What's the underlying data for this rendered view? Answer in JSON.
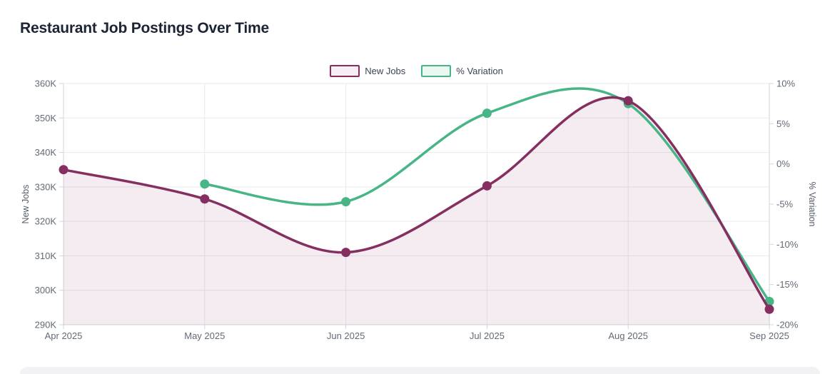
{
  "page": {
    "title": "Restaurant Job Postings Over Time"
  },
  "chart_data": {
    "type": "line",
    "title": "Restaurant Job Postings Over Time",
    "x": [
      "Apr 2025",
      "May 2025",
      "Jun 2025",
      "Jul 2025",
      "Aug 2025",
      "Sep 2025"
    ],
    "series": [
      {
        "name": "New Jobs",
        "axis": "left",
        "style": "smooth line with filled area",
        "color": "#852f61",
        "swatch_fill": "#f7eef4",
        "values": [
          335000,
          326500,
          311000,
          330300,
          355000,
          294500
        ]
      },
      {
        "name": "% Variation",
        "axis": "right",
        "style": "smooth line",
        "color": "#48b586",
        "swatch_fill": "#ebf8f1",
        "values": [
          null,
          -2.5,
          -4.7,
          6.3,
          7.5,
          -17.1
        ]
      }
    ],
    "left_axis": {
      "title": "New Jobs",
      "min": 290000,
      "max": 360000,
      "step": 10000,
      "tick_labels": [
        "290K",
        "300K",
        "310K",
        "320K",
        "330K",
        "340K",
        "350K",
        "360K"
      ]
    },
    "right_axis": {
      "title": "% Variation",
      "min": -20,
      "max": 10,
      "step": 5,
      "tick_labels": [
        "-20%",
        "-15%",
        "-10%",
        "-5%",
        "0%",
        "5%",
        "10%"
      ]
    },
    "legend": {
      "position": "top-center",
      "items": [
        "New Jobs",
        "% Variation"
      ]
    },
    "grid": {
      "horizontal": true,
      "vertical": true
    }
  },
  "colors": {
    "title_text": "#1c2433",
    "axis_text": "#636a75",
    "grid_line": "#e8eaed",
    "axis_line": "#d2d6da",
    "new_jobs_line": "#852f61",
    "variation_line": "#48b586",
    "area_fill": "rgba(133,47,97,0.09)",
    "background": "#ffffff",
    "bottom_bar": "#f2f2f4"
  }
}
